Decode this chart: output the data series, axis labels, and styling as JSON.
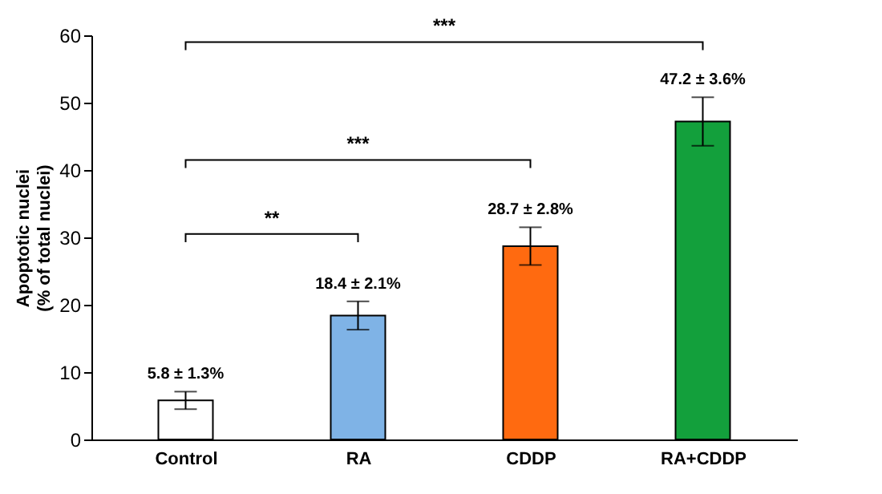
{
  "chart_data": {
    "type": "bar",
    "ylabel": "Apoptotic nuclei (% of total nuclei)",
    "categories": [
      "Control",
      "RA",
      "CDDP",
      "RA+CDDP"
    ],
    "values": [
      5.8,
      18.4,
      28.7,
      47.2
    ],
    "errors": [
      1.3,
      2.1,
      2.8,
      3.6
    ],
    "colors": [
      "#ffffff",
      "#7fb3e6",
      "#ff6a10",
      "#13a03c"
    ],
    "value_labels": [
      "5.8 ± 1.3%",
      "18.4 ± 2.1%",
      "28.7 ± 2.8%",
      "47.2 ± 3.6%"
    ],
    "annotations": [
      "**",
      "***",
      "***"
    ],
    "ylim": [
      0,
      60
    ],
    "yticks": [
      0,
      10,
      20,
      30,
      40,
      50,
      60
    ],
    "grid": false
  }
}
